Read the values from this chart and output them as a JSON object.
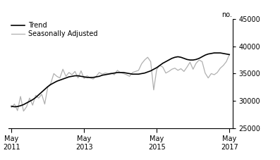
{
  "title": "",
  "ylabel": "no.",
  "ylim": [
    25000,
    45000
  ],
  "yticks": [
    25000,
    30000,
    35000,
    40000,
    45000
  ],
  "xtick_labels": [
    "May\n2011",
    "May\n2013",
    "May\n2015",
    "May\n2017"
  ],
  "xtick_positions": [
    0,
    24,
    48,
    72
  ],
  "total_points": 73,
  "legend_entries": [
    "Trend",
    "Seasonally Adjusted"
  ],
  "trend_color": "#000000",
  "sa_color": "#b0b0b0",
  "background_color": "#ffffff",
  "trend_linewidth": 1.2,
  "sa_linewidth": 0.9,
  "trend": [
    29000,
    28900,
    28950,
    29100,
    29300,
    29600,
    29900,
    30200,
    30600,
    31100,
    31600,
    32100,
    32600,
    33000,
    33300,
    33600,
    33800,
    34000,
    34200,
    34400,
    34500,
    34600,
    34600,
    34500,
    34400,
    34300,
    34300,
    34300,
    34400,
    34500,
    34700,
    34800,
    34900,
    35000,
    35100,
    35200,
    35200,
    35200,
    35100,
    35000,
    34900,
    34900,
    34900,
    35000,
    35100,
    35300,
    35500,
    35800,
    36100,
    36500,
    36900,
    37200,
    37500,
    37800,
    38000,
    38100,
    38000,
    37800,
    37600,
    37500,
    37500,
    37600,
    37800,
    38100,
    38400,
    38600,
    38700,
    38800,
    38800,
    38800,
    38700,
    38600,
    38500
  ],
  "seasonally_adjusted": [
    28800,
    29400,
    28200,
    30800,
    28100,
    28900,
    30500,
    29200,
    31000,
    30500,
    31200,
    29400,
    32500,
    33200,
    35000,
    34500,
    34200,
    35800,
    34500,
    35200,
    34800,
    35400,
    34200,
    35500,
    34100,
    34600,
    34200,
    34000,
    34500,
    35200,
    34900,
    35100,
    35000,
    35100,
    34800,
    35600,
    35200,
    35000,
    34800,
    34500,
    35200,
    35400,
    35600,
    36800,
    37500,
    38000,
    37200,
    32000,
    35800,
    36500,
    36200,
    35100,
    35400,
    35800,
    36000,
    35600,
    35900,
    35400,
    36200,
    37100,
    35800,
    36900,
    37500,
    37200,
    35100,
    34200,
    35000,
    34800,
    35200,
    36000,
    36500,
    37200,
    38500
  ]
}
